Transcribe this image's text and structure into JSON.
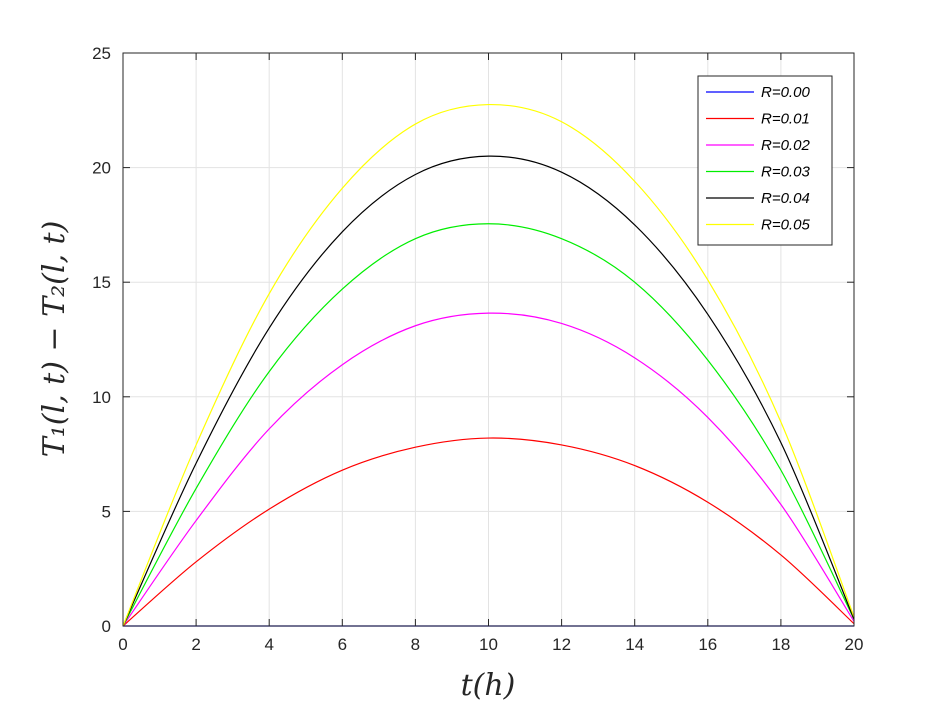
{
  "chart_data": {
    "type": "line",
    "xlabel": "t(h)",
    "ylabel": "T₁(l, t) − T₂(l, t)",
    "xlim": [
      0,
      20
    ],
    "ylim": [
      0,
      25
    ],
    "xticks": [
      "0",
      "2",
      "4",
      "6",
      "8",
      "10",
      "12",
      "14",
      "16",
      "18",
      "20"
    ],
    "yticks": [
      "0",
      "5",
      "10",
      "15",
      "20",
      "25"
    ],
    "grid": true,
    "legend_position": "top-right",
    "x": [
      0,
      2,
      4,
      6,
      8,
      10,
      12,
      14,
      16,
      18,
      20
    ],
    "series": [
      {
        "name": "R=0.00",
        "color": "#0000ff",
        "values": [
          0,
          0,
          0,
          0,
          0,
          0,
          0,
          0,
          0,
          0,
          0
        ]
      },
      {
        "name": "R=0.01",
        "color": "#ff0000",
        "values": [
          0,
          2.8,
          5.1,
          6.8,
          7.8,
          8.2,
          7.9,
          7.0,
          5.4,
          3.1,
          0.1
        ]
      },
      {
        "name": "R=0.02",
        "color": "#ff00ff",
        "values": [
          0,
          4.6,
          8.6,
          11.4,
          13.1,
          13.65,
          13.2,
          11.7,
          9.1,
          5.3,
          0.2
        ]
      },
      {
        "name": "R=0.03",
        "color": "#00ee00",
        "values": [
          0,
          6.0,
          11.1,
          14.7,
          16.9,
          17.55,
          16.9,
          15.0,
          11.6,
          6.8,
          0.3
        ]
      },
      {
        "name": "R=0.04",
        "color": "#000000",
        "values": [
          0,
          7.1,
          13.0,
          17.2,
          19.7,
          20.5,
          19.8,
          17.5,
          13.6,
          8.0,
          0.3
        ]
      },
      {
        "name": "R=0.05",
        "color": "#ffff00",
        "values": [
          0,
          7.9,
          14.5,
          19.1,
          21.9,
          22.75,
          22.0,
          19.4,
          15.1,
          8.9,
          0.4
        ]
      }
    ]
  }
}
